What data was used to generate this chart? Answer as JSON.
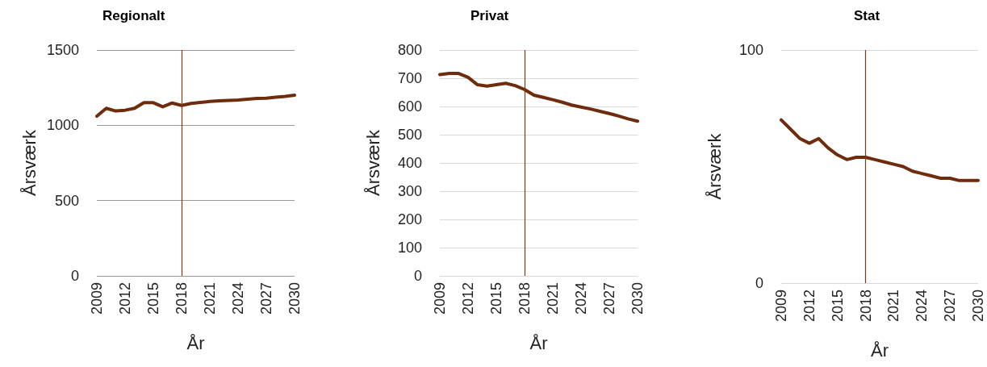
{
  "chart_data": [
    {
      "type": "line",
      "title": "Regionalt",
      "xlabel": "År",
      "ylabel": "Årsværk",
      "categories": [
        "2009",
        null,
        null,
        "2012",
        null,
        null,
        "2015",
        null,
        null,
        "2018",
        null,
        null,
        "2021",
        null,
        null,
        "2024",
        null,
        null,
        "2027",
        null,
        null,
        "2030"
      ],
      "series": [
        {
          "color": "#6e2c0c",
          "values": [
            1061,
            1113,
            1095,
            1100,
            1113,
            1150,
            1150,
            1123,
            1148,
            1132,
            1145,
            1152,
            1158,
            1163,
            1165,
            1168,
            1173,
            1178,
            1180,
            1187,
            1192,
            1200
          ]
        }
      ],
      "ylim": [
        0,
        1500
      ],
      "yticks": [
        0,
        500,
        1000,
        1500
      ],
      "grid": "y",
      "marker": "none",
      "ref_lines": [
        {
          "axis": "x",
          "value": "2018",
          "color": "#7a3a1a"
        }
      ]
    },
    {
      "type": "line",
      "title": "Privat",
      "xlabel": "År",
      "ylabel": "Årsværk",
      "categories": [
        "2009",
        null,
        null,
        "2012",
        null,
        null,
        "2015",
        null,
        null,
        "2018",
        null,
        null,
        "2021",
        null,
        null,
        "2024",
        null,
        null,
        "2027",
        null,
        null,
        "2030"
      ],
      "series": [
        {
          "color": "#6e2c0c",
          "values": [
            713,
            717,
            717,
            703,
            677,
            672,
            677,
            682,
            674,
            660,
            640,
            632,
            624,
            615,
            605,
            598,
            591,
            583,
            575,
            566,
            556,
            548
          ]
        }
      ],
      "ylim": [
        0,
        800
      ],
      "yticks": [
        0,
        100,
        200,
        300,
        400,
        500,
        600,
        700,
        800
      ],
      "grid": "y",
      "marker": "none",
      "ref_lines": [
        {
          "axis": "x",
          "value": "2018",
          "color": "#7a3a1a"
        }
      ]
    },
    {
      "type": "line",
      "title": "Stat",
      "xlabel": "År",
      "ylabel": "Årsværk",
      "categories": [
        "2009",
        null,
        null,
        "2012",
        null,
        null,
        "2015",
        null,
        null,
        "2018",
        null,
        null,
        "2021",
        null,
        null,
        "2024",
        null,
        null,
        "2027",
        null,
        null,
        "2030"
      ],
      "series": [
        {
          "color": "#6e2c0c",
          "values": [
            70,
            66,
            62,
            60,
            62,
            58,
            55,
            53,
            54,
            54,
            53,
            52,
            51,
            50,
            48,
            47,
            46,
            45,
            45,
            44,
            44,
            44
          ]
        }
      ],
      "ylim": [
        0,
        100
      ],
      "yticks": [
        0,
        100
      ],
      "grid": "y",
      "marker": "none",
      "ref_lines": [
        {
          "axis": "x",
          "value": "2018",
          "color": "#7a3a1a"
        }
      ]
    }
  ]
}
